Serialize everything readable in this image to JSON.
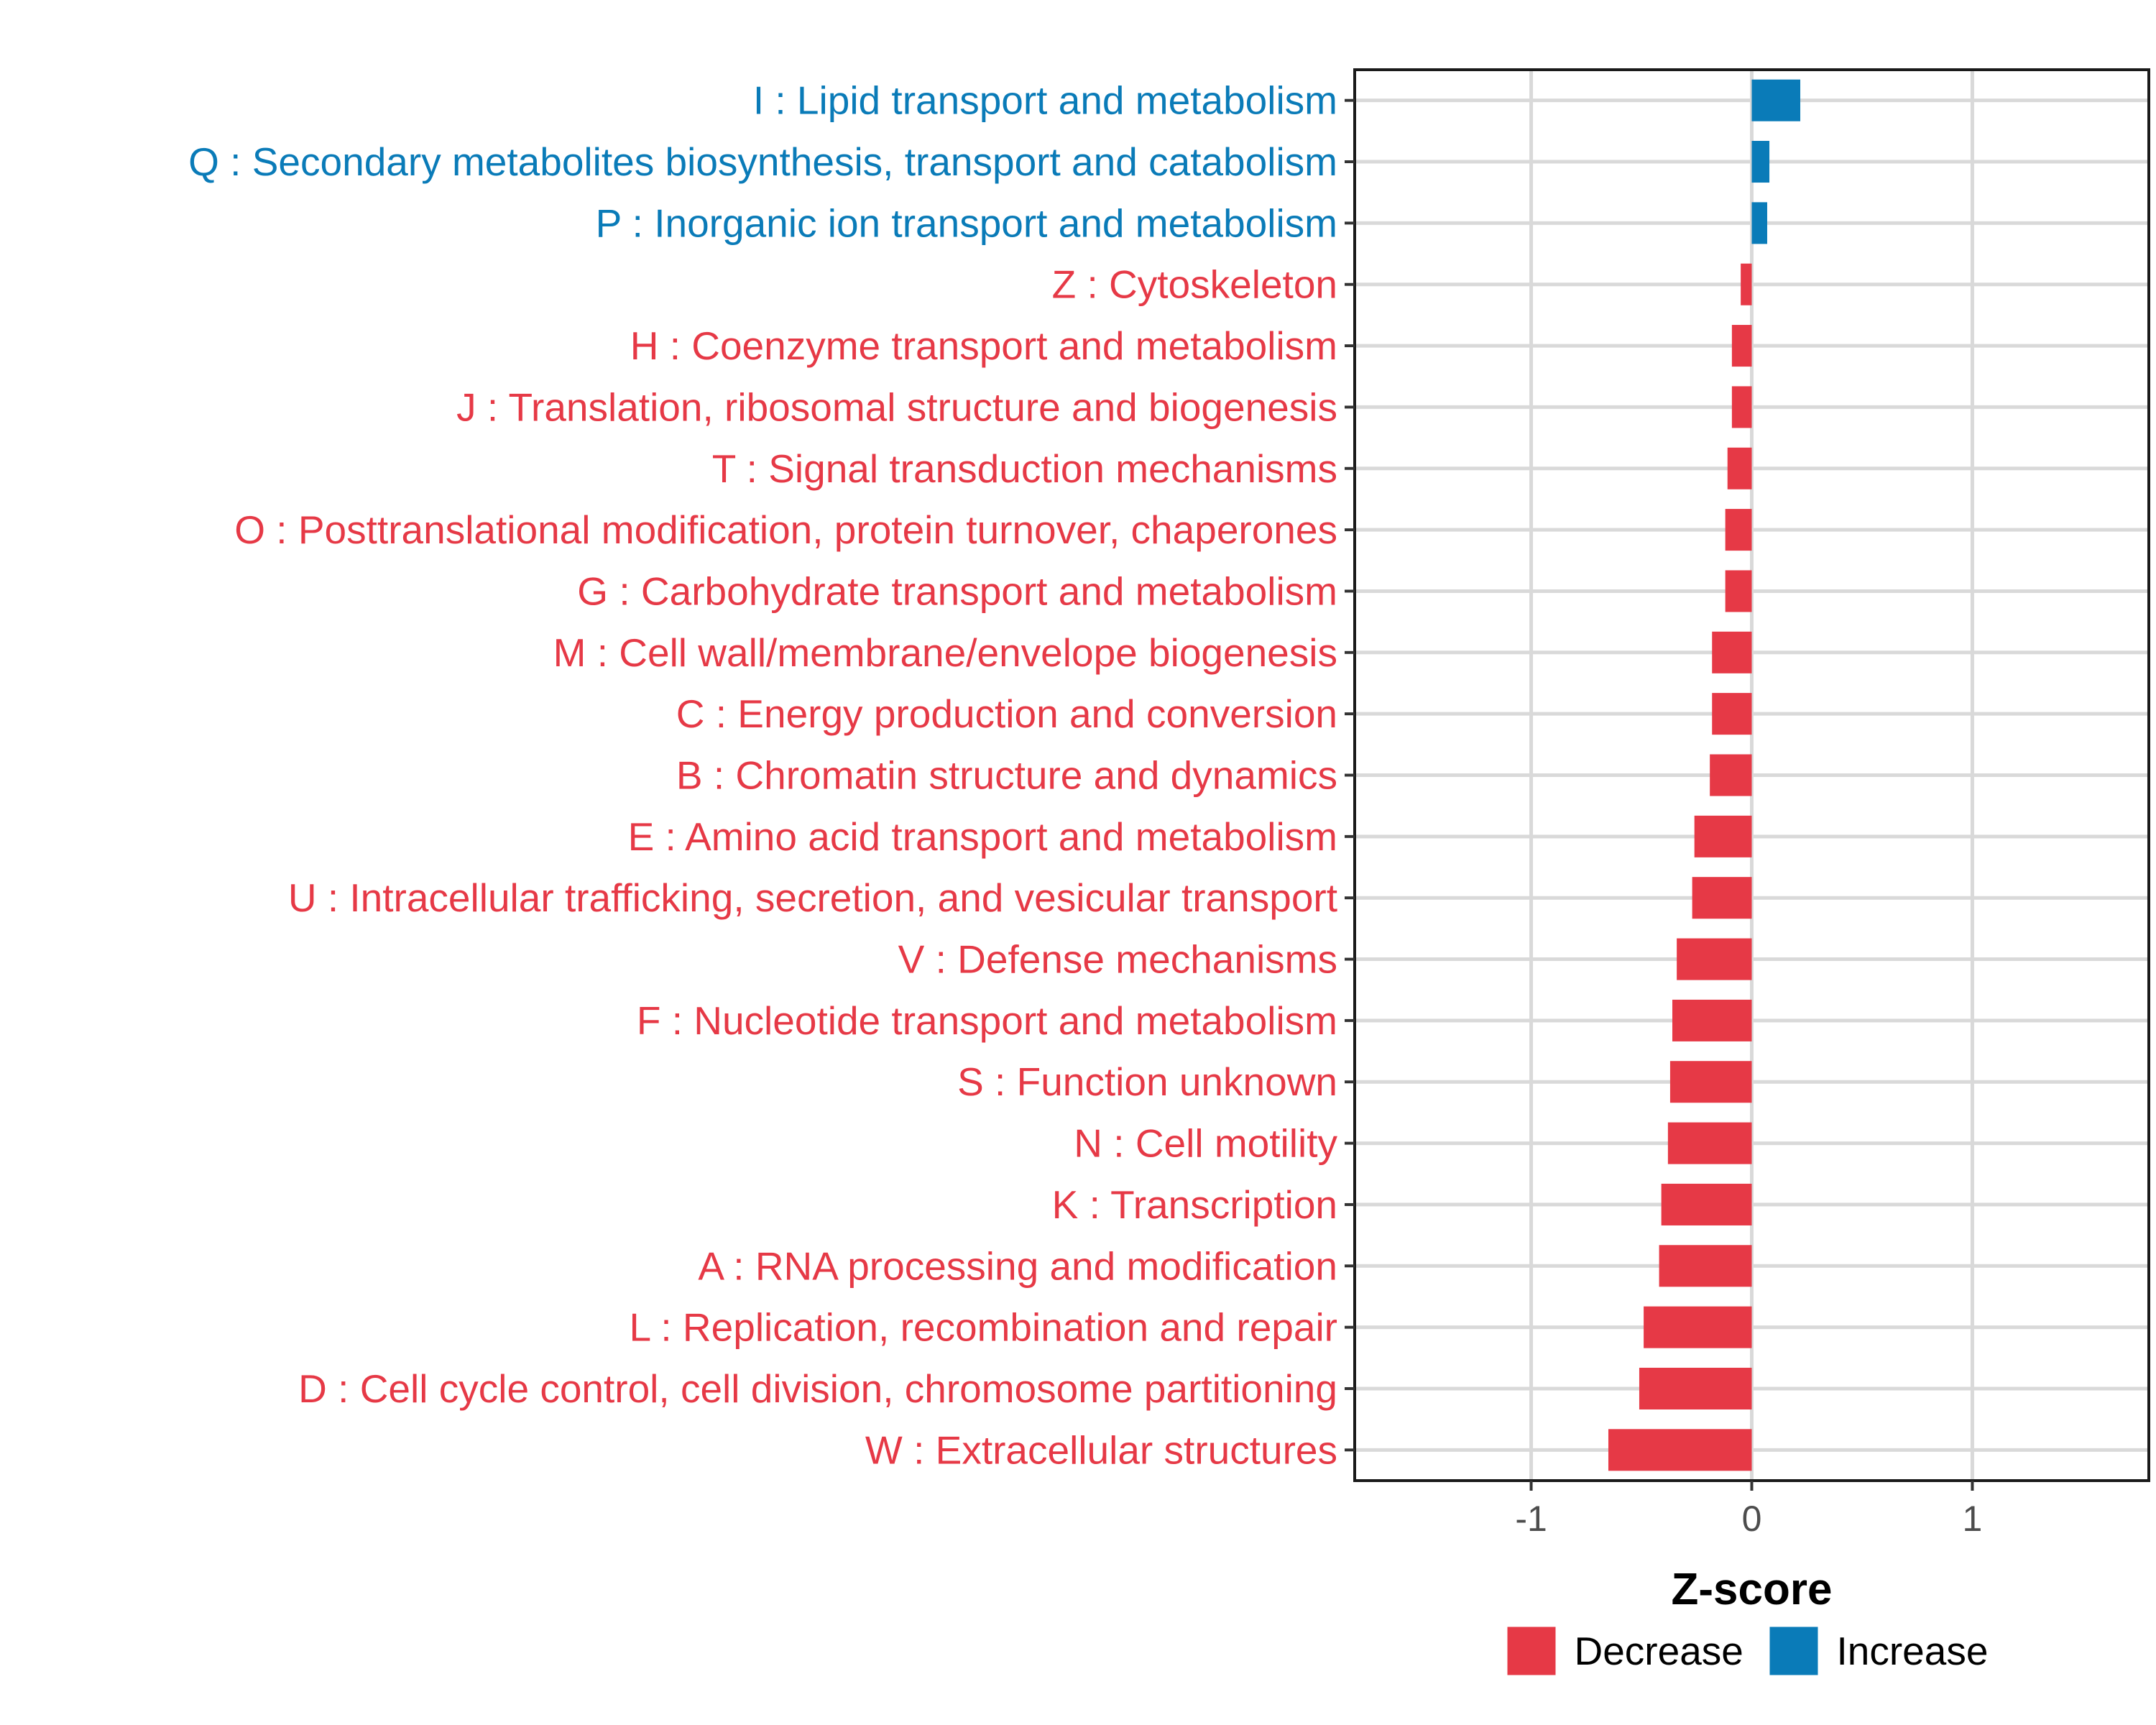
{
  "chart_data": {
    "type": "bar",
    "orientation": "horizontal",
    "xlabel": "Z-score",
    "ylabel": "",
    "xlim": [
      -1.8,
      1.8
    ],
    "xticks": [
      -1,
      0,
      1
    ],
    "xtick_labels": [
      "-1",
      "0",
      "1"
    ],
    "grid": true,
    "legend_position": "bottom",
    "legend": [
      {
        "label": "Decrease",
        "color": "#E63946"
      },
      {
        "label": "Increase",
        "color": "#0A7BB8"
      }
    ],
    "categories": [
      "I : Lipid transport and metabolism",
      "Q : Secondary metabolites biosynthesis, transport and catabolism",
      "P : Inorganic ion transport and metabolism",
      "Z : Cytoskeleton",
      "H : Coenzyme transport and metabolism",
      "J : Translation, ribosomal structure and biogenesis",
      "T : Signal transduction mechanisms",
      "O : Posttranslational modification, protein turnover, chaperones",
      "G : Carbohydrate transport and metabolism",
      "M : Cell wall/membrane/envelope biogenesis",
      "C : Energy production and conversion",
      "B : Chromatin structure and dynamics",
      "E : Amino acid transport and metabolism",
      "U : Intracellular trafficking, secretion, and vesicular transport",
      "V : Defense mechanisms",
      "F : Nucleotide transport and metabolism",
      "S : Function unknown",
      "N : Cell motility",
      "K : Transcription",
      "A : RNA processing and modification",
      "L : Replication, recombination and repair",
      "D : Cell cycle control, cell division, chromosome partitioning",
      "W : Extracellular structures"
    ],
    "values": [
      0.22,
      0.08,
      0.07,
      -0.05,
      -0.09,
      -0.09,
      -0.11,
      -0.12,
      -0.12,
      -0.18,
      -0.18,
      -0.19,
      -0.26,
      -0.27,
      -0.34,
      -0.36,
      -0.37,
      -0.38,
      -0.41,
      -0.42,
      -0.49,
      -0.51,
      -0.65
    ],
    "groups": [
      "Increase",
      "Increase",
      "Increase",
      "Decrease",
      "Decrease",
      "Decrease",
      "Decrease",
      "Decrease",
      "Decrease",
      "Decrease",
      "Decrease",
      "Decrease",
      "Decrease",
      "Decrease",
      "Decrease",
      "Decrease",
      "Decrease",
      "Decrease",
      "Decrease",
      "Decrease",
      "Decrease",
      "Decrease",
      "Decrease"
    ]
  }
}
